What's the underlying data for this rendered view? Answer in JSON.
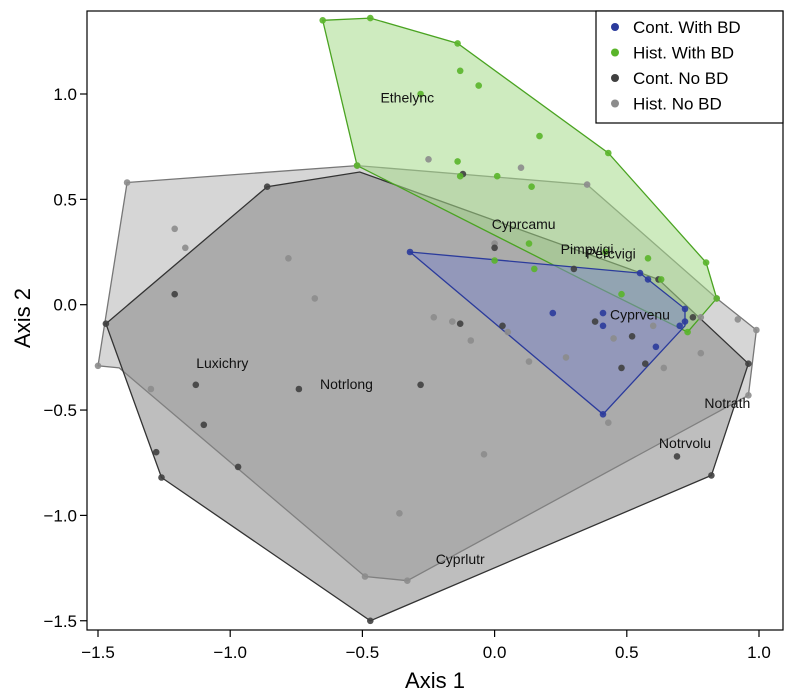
{
  "chart_data": {
    "type": "scatter",
    "xlabel": "Axis 1",
    "ylabel": "Axis 2",
    "xlim": [
      -1.52,
      1.1
    ],
    "ylim": [
      -1.52,
      1.38
    ],
    "x_ticks": [
      -1.5,
      -1.0,
      -0.5,
      0.0,
      0.5,
      1.0
    ],
    "x_tick_labels": [
      "−1.5",
      "−1.0",
      "−0.5",
      "0.0",
      "0.5",
      "1.0"
    ],
    "y_ticks": [
      -1.5,
      -1.0,
      -0.5,
      0.0,
      0.5,
      1.0
    ],
    "y_tick_labels": [
      "−1.5",
      "−1.0",
      "−0.5",
      "0.0",
      "0.5",
      "1.0"
    ],
    "grid": false,
    "legend_position": "top-right",
    "series": [
      {
        "name": "Hist. No BD",
        "color": "#8c8c8c",
        "hull_fill": "#b4b4b4",
        "hull_stroke": "#777777",
        "hull": [
          [
            -1.5,
            -0.29
          ],
          [
            -1.39,
            0.58
          ],
          [
            -0.52,
            0.66
          ],
          [
            0.35,
            0.57
          ],
          [
            0.84,
            0.03
          ],
          [
            0.99,
            -0.12
          ],
          [
            0.96,
            -0.43
          ],
          [
            -0.33,
            -1.31
          ],
          [
            -0.49,
            -1.29
          ],
          [
            -1.42,
            -0.3
          ]
        ],
        "points": [
          [
            -1.5,
            -0.29
          ],
          [
            -1.39,
            0.58
          ],
          [
            -1.21,
            0.36
          ],
          [
            -1.17,
            0.27
          ],
          [
            -1.3,
            -0.4
          ],
          [
            -0.78,
            0.22
          ],
          [
            -0.68,
            0.03
          ],
          [
            -0.52,
            0.66
          ],
          [
            -0.25,
            0.69
          ],
          [
            -0.23,
            -0.06
          ],
          [
            -0.16,
            -0.08
          ],
          [
            -0.09,
            -0.17
          ],
          [
            -0.04,
            -0.71
          ],
          [
            -0.36,
            -0.99
          ],
          [
            -0.49,
            -1.29
          ],
          [
            -0.33,
            -1.31
          ],
          [
            0.0,
            0.29
          ],
          [
            0.1,
            0.65
          ],
          [
            0.35,
            0.57
          ],
          [
            0.05,
            -0.13
          ],
          [
            0.13,
            -0.27
          ],
          [
            0.27,
            -0.25
          ],
          [
            0.43,
            -0.56
          ],
          [
            0.45,
            -0.16
          ],
          [
            0.6,
            -0.1
          ],
          [
            0.78,
            -0.06
          ],
          [
            0.84,
            0.03
          ],
          [
            0.92,
            -0.07
          ],
          [
            0.99,
            -0.12
          ],
          [
            0.96,
            -0.43
          ],
          [
            0.78,
            -0.23
          ],
          [
            0.64,
            -0.3
          ]
        ]
      },
      {
        "name": "Cont. No BD",
        "color": "#404040",
        "hull_fill": "#888888",
        "hull_stroke": "#333333",
        "hull": [
          [
            -1.47,
            -0.09
          ],
          [
            -0.86,
            0.56
          ],
          [
            -0.51,
            0.63
          ],
          [
            0.62,
            0.12
          ],
          [
            0.96,
            -0.28
          ],
          [
            0.82,
            -0.81
          ],
          [
            -0.47,
            -1.5
          ],
          [
            -1.26,
            -0.82
          ]
        ],
        "points": [
          [
            -1.47,
            -0.09
          ],
          [
            -1.26,
            -0.82
          ],
          [
            -1.28,
            -0.7
          ],
          [
            -1.21,
            0.05
          ],
          [
            -1.13,
            -0.38
          ],
          [
            -1.1,
            -0.57
          ],
          [
            -0.97,
            -0.77
          ],
          [
            -0.86,
            0.56
          ],
          [
            -0.74,
            -0.4
          ],
          [
            -0.28,
            -0.38
          ],
          [
            -0.47,
            -1.5
          ],
          [
            -0.13,
            -0.09
          ],
          [
            -0.12,
            0.62
          ],
          [
            0.03,
            -0.1
          ],
          [
            0.0,
            0.27
          ],
          [
            0.3,
            0.17
          ],
          [
            0.38,
            -0.08
          ],
          [
            0.48,
            -0.3
          ],
          [
            0.52,
            -0.15
          ],
          [
            0.57,
            -0.28
          ],
          [
            0.62,
            0.12
          ],
          [
            0.75,
            -0.06
          ],
          [
            0.69,
            -0.72
          ],
          [
            0.96,
            -0.28
          ],
          [
            0.82,
            -0.81
          ]
        ]
      },
      {
        "name": "Hist. With BD",
        "color": "#5ab52a",
        "hull_fill": "#a6db8a",
        "hull_stroke": "#4aa321",
        "hull": [
          [
            -0.65,
            1.35
          ],
          [
            -0.47,
            1.36
          ],
          [
            -0.14,
            1.24
          ],
          [
            0.43,
            0.72
          ],
          [
            0.8,
            0.2
          ],
          [
            0.84,
            0.03
          ],
          [
            0.73,
            -0.13
          ],
          [
            0.33,
            0.12
          ],
          [
            -0.52,
            0.66
          ]
        ],
        "points": [
          [
            -0.65,
            1.35
          ],
          [
            -0.47,
            1.36
          ],
          [
            -0.14,
            1.24
          ],
          [
            -0.13,
            1.11
          ],
          [
            -0.06,
            1.04
          ],
          [
            0.17,
            0.8
          ],
          [
            0.43,
            0.72
          ],
          [
            -0.28,
            1.0
          ],
          [
            -0.52,
            0.66
          ],
          [
            -0.14,
            0.68
          ],
          [
            -0.13,
            0.61
          ],
          [
            0.01,
            0.61
          ],
          [
            0.14,
            0.56
          ],
          [
            0.13,
            0.29
          ],
          [
            0.0,
            0.21
          ],
          [
            0.15,
            0.17
          ],
          [
            0.42,
            0.25
          ],
          [
            0.48,
            0.05
          ],
          [
            0.58,
            0.22
          ],
          [
            0.63,
            0.12
          ],
          [
            0.8,
            0.2
          ],
          [
            0.84,
            0.03
          ],
          [
            0.73,
            -0.13
          ]
        ]
      },
      {
        "name": "Cont. With BD",
        "color": "#2b3b9c",
        "hull_fill": "#7f88c7",
        "hull_stroke": "#2b3b9c",
        "hull": [
          [
            -0.32,
            0.25
          ],
          [
            0.55,
            0.15
          ],
          [
            0.72,
            -0.02
          ],
          [
            0.72,
            -0.1
          ],
          [
            0.41,
            -0.52
          ]
        ],
        "points": [
          [
            -0.32,
            0.25
          ],
          [
            0.22,
            -0.04
          ],
          [
            0.41,
            -0.04
          ],
          [
            0.41,
            -0.1
          ],
          [
            0.55,
            0.15
          ],
          [
            0.58,
            0.12
          ],
          [
            0.72,
            -0.02
          ],
          [
            0.72,
            -0.08
          ],
          [
            0.7,
            -0.1
          ],
          [
            0.61,
            -0.2
          ],
          [
            0.41,
            -0.52
          ]
        ]
      }
    ],
    "annotations": [
      {
        "text": "Ethelync",
        "x": -0.33,
        "y": 0.96
      },
      {
        "text": "Cyprcamu",
        "x": 0.11,
        "y": 0.36
      },
      {
        "text": "Pimpvigi",
        "x": 0.35,
        "y": 0.24
      },
      {
        "text": "Percvigi",
        "x": 0.44,
        "y": 0.22
      },
      {
        "text": "Cyprvenu",
        "x": 0.55,
        "y": -0.07
      },
      {
        "text": "Luxichry",
        "x": -1.03,
        "y": -0.3
      },
      {
        "text": "Notrlong",
        "x": -0.56,
        "y": -0.4
      },
      {
        "text": "Notrath",
        "x": 0.88,
        "y": -0.49
      },
      {
        "text": "Notrvolu",
        "x": 0.72,
        "y": -0.68
      },
      {
        "text": "Cyprlutr",
        "x": -0.13,
        "y": -1.23
      }
    ],
    "legend": [
      {
        "label": "Cont. With BD",
        "color": "#2b3b9c"
      },
      {
        "label": "Hist. With BD",
        "color": "#5ab52a"
      },
      {
        "label": "Cont. No BD",
        "color": "#404040"
      },
      {
        "label": "Hist. No BD",
        "color": "#8c8c8c"
      }
    ]
  }
}
